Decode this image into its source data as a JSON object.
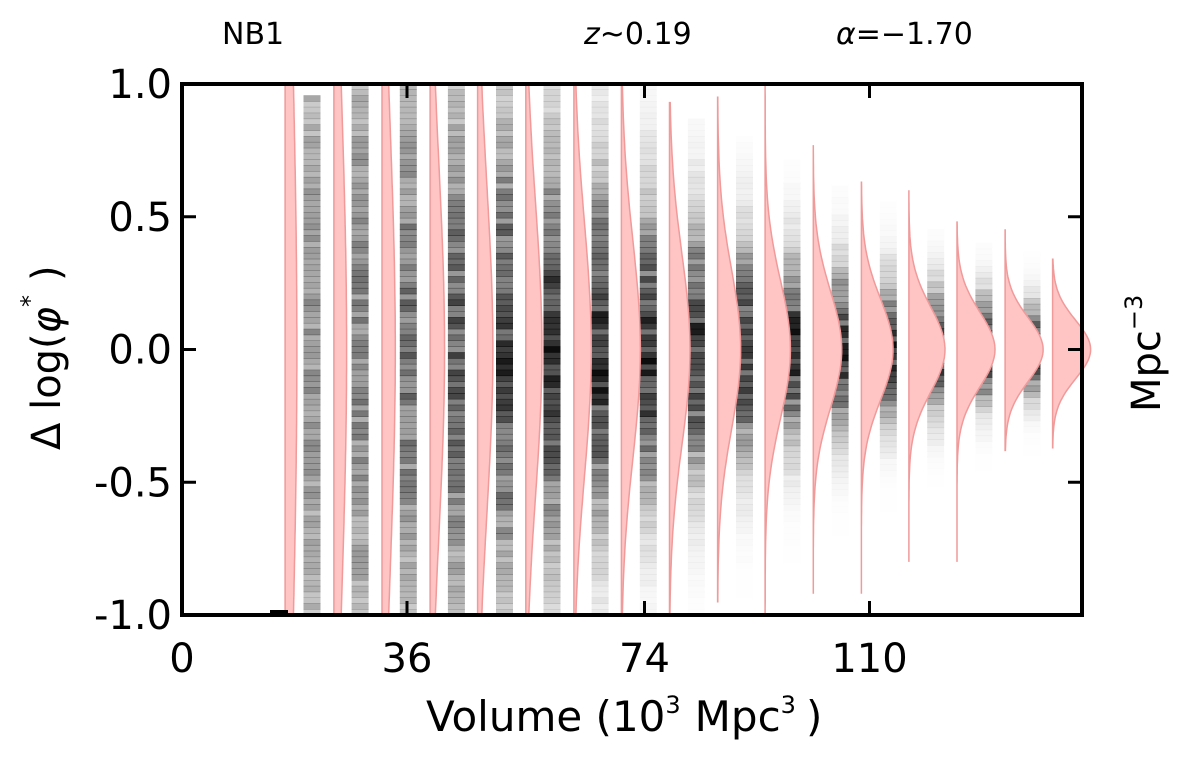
{
  "chart_data": {
    "type": "violin",
    "panel_labels": {
      "filter": "NB1",
      "redshift_symbol": "z",
      "redshift_value": "~0.19",
      "alpha_symbol": "α",
      "alpha_value": "=−1.70"
    },
    "xlabel_main": "Volume (10",
    "xlabel_exp": "3",
    "xlabel_unit": "Mpc",
    "xlabel_unit_exp": "3",
    "xlabel_close": ")",
    "ylabel_main": "Δ log(",
    "ylabel_phi": "φ",
    "ylabel_star": "*",
    "ylabel_close": ")",
    "right_label": "Mpc",
    "right_label_exp": "−3",
    "xlim": [
      0,
      144
    ],
    "ylim": [
      -1.0,
      1.0
    ],
    "x_ticks": [
      0,
      36,
      74,
      110
    ],
    "x_tick_labels": [
      "0",
      "36",
      "74",
      "110"
    ],
    "y_ticks": [
      1.0,
      0.5,
      0.0,
      -0.5,
      -1.0
    ],
    "y_tick_labels": [
      "1.0",
      "0.5",
      "0.0",
      "-0.5",
      "-1.0"
    ],
    "colors": {
      "violin_fill": "#ffc4c4",
      "violin_edge": "#f09a9a",
      "density": "#000000"
    },
    "violins": [
      {
        "x": 16.5,
        "sigma": 1.2,
        "ymin": -1.0,
        "ymax": 1.0
      },
      {
        "x": 24.3,
        "sigma": 0.95,
        "ymin": -1.0,
        "ymax": 1.0
      },
      {
        "x": 32.0,
        "sigma": 0.85,
        "ymin": -1.0,
        "ymax": 1.0
      },
      {
        "x": 39.7,
        "sigma": 0.7,
        "ymin": -1.0,
        "ymax": 1.0
      },
      {
        "x": 47.3,
        "sigma": 0.62,
        "ymin": -1.0,
        "ymax": 1.0
      },
      {
        "x": 55.0,
        "sigma": 0.55,
        "ymin": -1.0,
        "ymax": 1.0
      },
      {
        "x": 62.7,
        "sigma": 0.48,
        "ymin": -1.0,
        "ymax": 1.0
      },
      {
        "x": 70.3,
        "sigma": 0.41,
        "ymin": -1.0,
        "ymax": 1.0
      },
      {
        "x": 78.0,
        "sigma": 0.36,
        "ymin": -1.0,
        "ymax": 0.93
      },
      {
        "x": 85.7,
        "sigma": 0.3,
        "ymin": -0.95,
        "ymax": 0.95
      },
      {
        "x": 93.3,
        "sigma": 0.26,
        "ymin": -1.0,
        "ymax": 1.0
      },
      {
        "x": 101.0,
        "sigma": 0.22,
        "ymin": -0.92,
        "ymax": 0.77
      },
      {
        "x": 108.7,
        "sigma": 0.19,
        "ymin": -0.92,
        "ymax": 0.63
      },
      {
        "x": 116.3,
        "sigma": 0.16,
        "ymin": -0.8,
        "ymax": 0.6
      },
      {
        "x": 124.0,
        "sigma": 0.14,
        "ymin": -0.8,
        "ymax": 0.48
      },
      {
        "x": 131.7,
        "sigma": 0.12,
        "ymin": -0.38,
        "ymax": 0.45
      },
      {
        "x": 139.3,
        "sigma": 0.11,
        "ymin": -0.37,
        "ymax": 0.34
      }
    ],
    "density_columns": [
      {
        "x": 20.8,
        "sigma": 1.1,
        "top": 0.95,
        "bottom": -1.0
      },
      {
        "x": 28.5,
        "sigma": 0.95,
        "top": 1.0,
        "bottom": -1.0
      },
      {
        "x": 36.2,
        "sigma": 0.82,
        "top": 1.0,
        "bottom": -1.0
      },
      {
        "x": 43.9,
        "sigma": 0.7,
        "top": 1.0,
        "bottom": -1.0
      },
      {
        "x": 51.6,
        "sigma": 0.6,
        "top": 1.0,
        "bottom": -1.0
      },
      {
        "x": 59.2,
        "sigma": 0.52,
        "top": 1.0,
        "bottom": -1.0
      },
      {
        "x": 66.9,
        "sigma": 0.45,
        "top": 1.0,
        "bottom": -1.0
      },
      {
        "x": 74.6,
        "sigma": 0.38,
        "top": 1.0,
        "bottom": -1.0
      },
      {
        "x": 82.3,
        "sigma": 0.32,
        "top": 0.85,
        "bottom": -1.0
      },
      {
        "x": 90.0,
        "sigma": 0.27,
        "top": 0.8,
        "bottom": -1.0
      },
      {
        "x": 97.6,
        "sigma": 0.23,
        "top": 0.7,
        "bottom": -1.0
      },
      {
        "x": 105.3,
        "sigma": 0.2,
        "top": 0.6,
        "bottom": -0.9
      },
      {
        "x": 113.0,
        "sigma": 0.17,
        "top": 0.55,
        "bottom": -0.85
      },
      {
        "x": 120.6,
        "sigma": 0.15,
        "top": 0.45,
        "bottom": -0.8
      },
      {
        "x": 128.3,
        "sigma": 0.13,
        "top": 0.4,
        "bottom": -0.5
      },
      {
        "x": 136.0,
        "sigma": 0.11,
        "top": 0.35,
        "bottom": -0.4
      }
    ]
  }
}
